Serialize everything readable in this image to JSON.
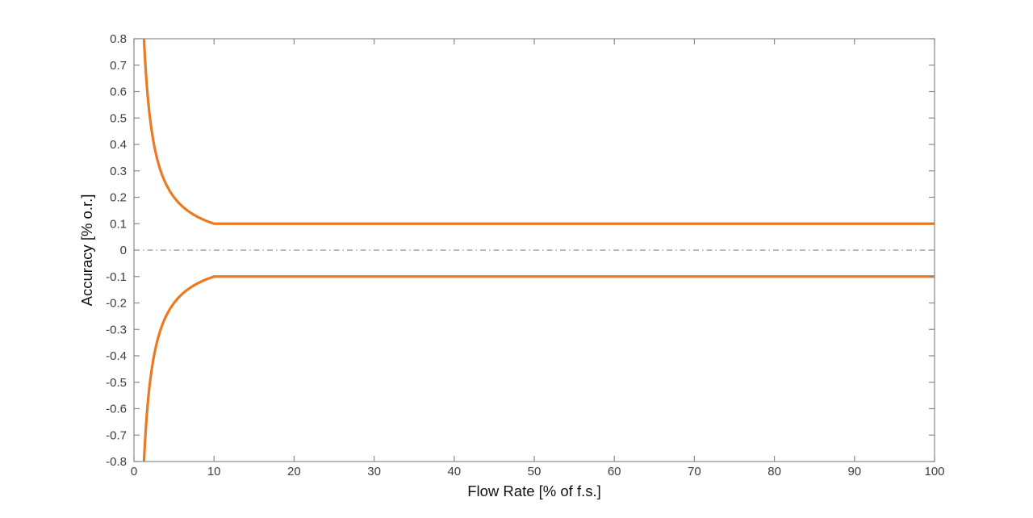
{
  "figure": {
    "background": "#ffffff"
  },
  "chart_data": {
    "type": "line",
    "title": "",
    "xlabel": "Flow Rate [% of f.s.]",
    "ylabel": "Accuracy [% o.r.]",
    "xlim": [
      0,
      100
    ],
    "ylim": [
      -0.8,
      0.8
    ],
    "grid": false,
    "box": true,
    "tick_direction": "in",
    "legend": "none",
    "axis_color": "#8a8a8a",
    "tick_label_color": "#3d3d3d",
    "xticks": {
      "values": [
        0,
        10,
        20,
        30,
        40,
        50,
        60,
        70,
        80,
        90,
        100
      ],
      "labels": [
        "0",
        "10",
        "20",
        "30",
        "40",
        "50",
        "60",
        "70",
        "80",
        "90",
        "100"
      ]
    },
    "yticks": {
      "values": [
        -0.8,
        -0.7,
        -0.6,
        -0.5,
        -0.4,
        -0.3,
        -0.2,
        -0.1,
        0,
        0.1,
        0.2,
        0.3,
        0.4,
        0.5,
        0.6,
        0.7,
        0.8
      ],
      "labels": [
        "-0.8",
        "-0.7",
        "-0.6",
        "-0.5",
        "-0.4",
        "-0.3",
        "-0.2",
        "-0.1",
        "0",
        "0.1",
        "0.2",
        "0.3",
        "0.4",
        "0.5",
        "0.6",
        "0.7",
        "0.8"
      ]
    },
    "series": [
      {
        "name": "upper-accuracy-limit",
        "color": "#EB7A24",
        "width": 3.2,
        "style": "solid",
        "x": [
          1.25,
          1.3,
          1.35,
          1.4,
          1.5,
          1.6,
          1.7,
          1.8,
          1.9,
          2,
          2.2,
          2.4,
          2.6,
          2.8,
          3,
          3.25,
          3.5,
          3.75,
          4,
          4.5,
          5,
          5.5,
          6,
          6.5,
          7,
          7.5,
          8,
          8.5,
          9,
          9.5,
          10,
          100
        ],
        "y": [
          0.8,
          0.7692,
          0.7407,
          0.7143,
          0.6667,
          0.625,
          0.5882,
          0.5556,
          0.5263,
          0.5,
          0.4545,
          0.4167,
          0.3846,
          0.3571,
          0.3333,
          0.3077,
          0.2857,
          0.2667,
          0.25,
          0.2222,
          0.2,
          0.1818,
          0.1667,
          0.1538,
          0.1429,
          0.1333,
          0.125,
          0.1176,
          0.1111,
          0.1053,
          0.1,
          0.1
        ]
      },
      {
        "name": "lower-accuracy-limit",
        "color": "#EB7A24",
        "width": 3.2,
        "style": "solid",
        "x": [
          1.25,
          1.3,
          1.35,
          1.4,
          1.5,
          1.6,
          1.7,
          1.8,
          1.9,
          2,
          2.2,
          2.4,
          2.6,
          2.8,
          3,
          3.25,
          3.5,
          3.75,
          4,
          4.5,
          5,
          5.5,
          6,
          6.5,
          7,
          7.5,
          8,
          8.5,
          9,
          9.5,
          10,
          100
        ],
        "y": [
          -0.8,
          -0.7692,
          -0.7407,
          -0.7143,
          -0.6667,
          -0.625,
          -0.5882,
          -0.5556,
          -0.5263,
          -0.5,
          -0.4545,
          -0.4167,
          -0.3846,
          -0.3571,
          -0.3333,
          -0.3077,
          -0.2857,
          -0.2667,
          -0.25,
          -0.2222,
          -0.2,
          -0.1818,
          -0.1667,
          -0.1538,
          -0.1429,
          -0.1333,
          -0.125,
          -0.1176,
          -0.1111,
          -0.1053,
          -0.1,
          -0.1
        ]
      },
      {
        "name": "zero-reference",
        "color": "#777777",
        "width": 1,
        "style": "dash-dot",
        "x": [
          0,
          100
        ],
        "y": [
          0,
          0
        ]
      }
    ]
  }
}
